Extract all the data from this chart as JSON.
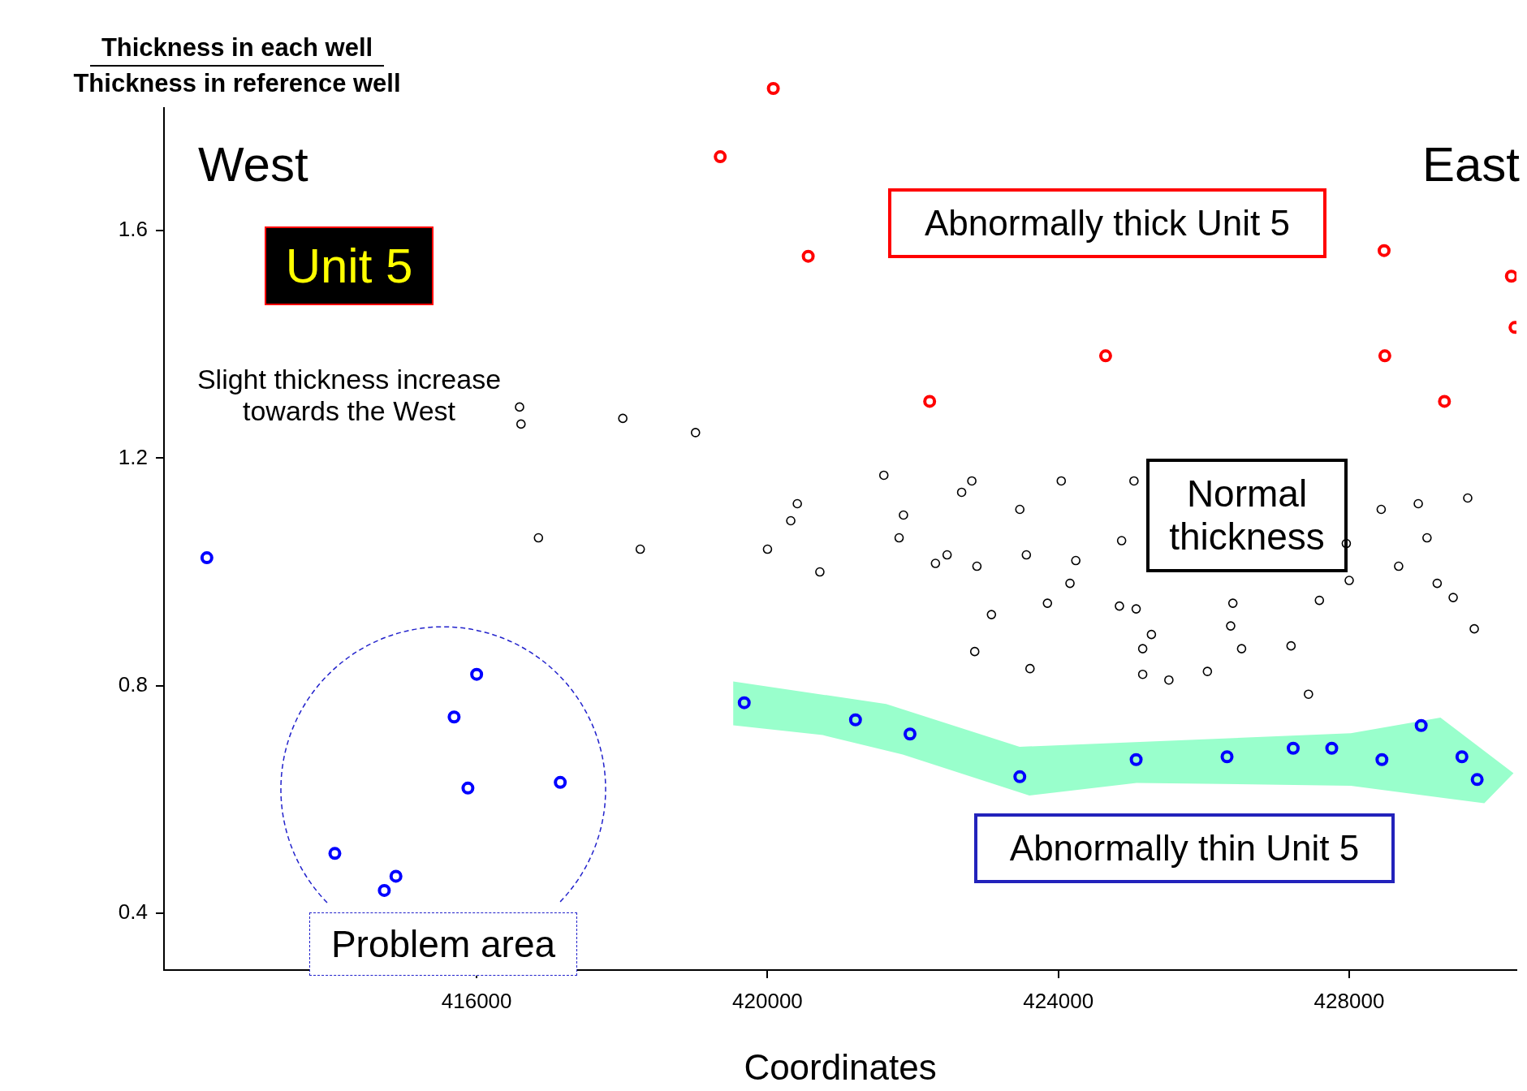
{
  "chart_data": {
    "type": "scatter",
    "ylabel": "Thickness in each well\nThickness in reference well",
    "xlabel": "Coordinates",
    "xlim": [
      411700,
      430300
    ],
    "ylim": [
      0.3,
      1.9
    ],
    "xticks": [
      416000,
      420000,
      424000,
      428000
    ],
    "yticks": [
      0.4,
      0.8,
      1.2,
      1.6
    ],
    "grid": false,
    "legend": false,
    "marker": "circle",
    "annotations": [
      "West",
      "East",
      "Unit 5",
      "Abnormally thick Unit 5",
      "Slight thickness increase towards the West",
      "Normal thickness",
      "Abnormally thin Unit 5",
      "Problem area"
    ],
    "series": [
      {
        "color": "#000000",
        "x": [
          416590,
          416610,
          416850,
          418010,
          418250,
          419010,
          420000,
          420320,
          420410,
          420720,
          421600,
          421870,
          421810,
          422310,
          422470,
          422670,
          422810,
          422880,
          422850,
          423080,
          423470,
          423560,
          423610,
          423850,
          424040,
          424160,
          424240,
          424840,
          424870,
          425040,
          425070,
          425160,
          425280,
          425160,
          425520,
          426050,
          426370,
          426400,
          426520,
          427200,
          427440,
          427590,
          427960,
          428000,
          428440,
          428680,
          428950,
          429070,
          429210,
          429430,
          429630,
          429720
        ],
        "values": [
          1.29,
          1.26,
          1.06,
          1.27,
          1.04,
          1.245,
          1.04,
          1.09,
          1.12,
          1.0,
          1.17,
          1.1,
          1.06,
          1.015,
          1.03,
          1.14,
          1.16,
          1.01,
          0.86,
          0.925,
          1.11,
          1.03,
          0.83,
          0.945,
          1.16,
          0.98,
          1.02,
          0.94,
          1.055,
          1.16,
          0.935,
          0.865,
          0.89,
          0.82,
          0.81,
          0.825,
          0.905,
          0.945,
          0.865,
          0.87,
          0.785,
          0.95,
          1.05,
          0.985,
          1.11,
          1.01,
          1.12,
          1.06,
          0.98,
          0.955,
          1.13,
          0.9
        ]
      },
      {
        "color": "#ff0000",
        "x": [
          419350,
          420080,
          420560,
          422230,
          424650,
          428480,
          428490,
          429310,
          430230,
          430280
        ],
        "values": [
          1.73,
          1.85,
          1.555,
          1.3,
          1.38,
          1.565,
          1.38,
          1.3,
          1.52,
          1.43
        ]
      },
      {
        "color": "#0000ff",
        "x": [
          412290,
          414050,
          414730,
          414890,
          415690,
          416000,
          415880,
          417150,
          419680,
          421210,
          421960,
          423470,
          425070,
          426320,
          427230,
          427760,
          428450,
          428990,
          429550,
          429760
        ],
        "values": [
          1.025,
          0.505,
          0.44,
          0.465,
          0.745,
          0.82,
          0.62,
          0.63,
          0.77,
          0.74,
          0.715,
          0.64,
          0.67,
          0.675,
          0.69,
          0.69,
          0.67,
          0.73,
          0.675,
          0.635
        ]
      }
    ]
  }
}
